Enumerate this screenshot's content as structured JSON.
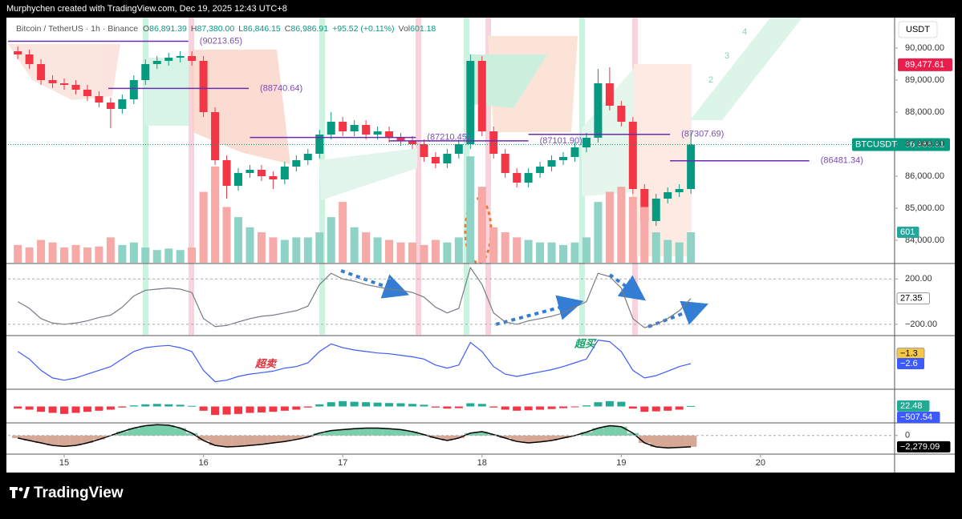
{
  "header": {
    "credit": "Murphychen created with TradingView.com, Dec 19, 2025 12:43 UTC+8",
    "symbol": "Bitcoin / TetherUS · 1h · Binance",
    "ohlc": [
      {
        "k": "O",
        "v": "86,891.39"
      },
      {
        "k": "H",
        "v": "87,380.00"
      },
      {
        "k": "L",
        "v": "86,846.15"
      },
      {
        "k": "C",
        "v": "86,986.91"
      }
    ],
    "change": "+95.52 (+0.11%)",
    "vol_label": "Vol",
    "vol": "601.18"
  },
  "footer": {
    "brand": "TradingView"
  },
  "annotations": {
    "oversold": "超卖",
    "overbought": "超买",
    "waves": [
      "2",
      "3",
      "4"
    ]
  },
  "chart_data": [
    {
      "type": "candlestick",
      "currency": "USDT",
      "up_color": "#089981",
      "down_color": "#f23645",
      "x": [
        -8,
        -6,
        -4,
        -2,
        0,
        2,
        4,
        6,
        8,
        10,
        12,
        14,
        16,
        18,
        20,
        22,
        24,
        26,
        28,
        30,
        32,
        34,
        36,
        38,
        40,
        42,
        44,
        46,
        48,
        50,
        52,
        54,
        56,
        58,
        60,
        62,
        64,
        66,
        68,
        70,
        72,
        74,
        76,
        78,
        80,
        82,
        84,
        86,
        88,
        90,
        92,
        94,
        96,
        98,
        100,
        102,
        104,
        106,
        108
      ],
      "open": [
        89900,
        89800,
        89500,
        89000,
        88900,
        88850,
        88700,
        88500,
        88300,
        88100,
        88400,
        89000,
        89500,
        89600,
        89700,
        89750,
        89600,
        88000,
        86500,
        85700,
        86100,
        86200,
        86000,
        85900,
        86300,
        86500,
        86700,
        87300,
        87700,
        87400,
        87600,
        87300,
        87400,
        87200,
        87100,
        87000,
        86600,
        86400,
        86700,
        87000,
        89600,
        87400,
        86700,
        86100,
        85800,
        86100,
        86300,
        86500,
        86600,
        86900,
        87200,
        88900,
        88200,
        87700,
        85600,
        84600,
        85300,
        85500,
        85600
      ],
      "high": [
        90050,
        89950,
        89650,
        89150,
        89050,
        89000,
        88850,
        88650,
        88450,
        88550,
        89150,
        89650,
        89750,
        89850,
        89900,
        89900,
        89750,
        88150,
        86650,
        86250,
        86350,
        86350,
        86150,
        86450,
        86650,
        86850,
        87450,
        88000,
        87850,
        87750,
        87750,
        87550,
        87550,
        87350,
        87250,
        87150,
        86750,
        86850,
        87150,
        89800,
        89750,
        87550,
        86850,
        86250,
        86250,
        86450,
        86650,
        86750,
        87050,
        87350,
        89350,
        89400,
        88350,
        87850,
        85750,
        85450,
        85650,
        85750,
        87380
      ],
      "low": [
        89650,
        89350,
        88850,
        88750,
        88700,
        88550,
        88350,
        88150,
        87500,
        87950,
        88250,
        88850,
        89350,
        89450,
        89550,
        89450,
        87850,
        86350,
        85300,
        85550,
        85950,
        85850,
        85600,
        85750,
        86150,
        86350,
        86550,
        87150,
        87250,
        87250,
        87150,
        87150,
        87050,
        86950,
        86850,
        86450,
        86250,
        86250,
        86550,
        86850,
        87250,
        86550,
        85950,
        85650,
        85650,
        85950,
        86150,
        86350,
        86450,
        86750,
        87050,
        88050,
        87550,
        85450,
        84450,
        84450,
        85150,
        85350,
        85450
      ],
      "close": [
        89800,
        89500,
        89000,
        88900,
        88850,
        88700,
        88500,
        88300,
        88100,
        88400,
        89000,
        89500,
        89600,
        89700,
        89750,
        89600,
        88000,
        86500,
        85700,
        86100,
        86200,
        86000,
        85900,
        86300,
        86500,
        86700,
        87300,
        87700,
        87400,
        87600,
        87300,
        87400,
        87200,
        87100,
        87000,
        86600,
        86400,
        86700,
        87000,
        89600,
        87400,
        86700,
        86100,
        85800,
        86100,
        86300,
        86500,
        86600,
        86900,
        87200,
        88900,
        88200,
        87700,
        85600,
        84600,
        85300,
        85500,
        85600,
        86986.91
      ],
      "xlim": [
        -9.68,
        143.1
      ],
      "xticks": [
        {
          "value": 0,
          "label": "15"
        },
        {
          "value": 24,
          "label": "16"
        },
        {
          "value": 48,
          "label": "17"
        },
        {
          "value": 72,
          "label": "18"
        },
        {
          "value": 96,
          "label": "19"
        },
        {
          "value": 120,
          "label": "20"
        }
      ],
      "ylim": [
        83300,
        90950
      ],
      "yticks": [
        {
          "value": 84000,
          "label": "84,000.00"
        },
        {
          "value": 85000,
          "label": "85,000.00"
        },
        {
          "value": 86000,
          "label": "86,000.00"
        },
        {
          "value": 87000,
          "label": "87,000.00"
        },
        {
          "value": 88000,
          "label": "88,000.00"
        },
        {
          "value": 89000,
          "label": "89,000.00"
        },
        {
          "value": 90000,
          "label": "90,000.00"
        }
      ],
      "levels": [
        {
          "value": 90213.65,
          "label": "(90213.65)",
          "from": -9.7,
          "to": 21.4
        },
        {
          "value": 88740.64,
          "label": "(88740.64)",
          "from": 7.6,
          "to": 31.8
        },
        {
          "value": 87210.45,
          "label": "(87210.45)",
          "from": 32,
          "to": 60.6
        },
        {
          "value": 87101.9,
          "label": "(87101.90)",
          "from": 56,
          "to": 80
        },
        {
          "value": 87307.69,
          "label": "(87307.69)",
          "from": 80,
          "to": 104.4
        },
        {
          "value": 86481.34,
          "label": "(86481.34)",
          "from": 104.4,
          "to": 128.4
        }
      ],
      "last_price": {
        "name": "BTCUSDT",
        "value": 86986.91,
        "label": "86,986.91"
      },
      "price_marker": {
        "value": 89477.61,
        "label": "89,477.61"
      }
    },
    {
      "type": "bar",
      "up_color": "#8fd3c6",
      "down_color": "#f7a9a7",
      "values": [
        350,
        300,
        450,
        400,
        300,
        350,
        300,
        320,
        500,
        350,
        400,
        300,
        250,
        280,
        250,
        300,
        1400,
        1900,
        1100,
        900,
        700,
        600,
        500,
        450,
        500,
        500,
        600,
        900,
        1200,
        700,
        600,
        500,
        450,
        400,
        400,
        350,
        450,
        400,
        500,
        2100,
        1500,
        700,
        600,
        500,
        450,
        400,
        400,
        350,
        400,
        500,
        1200,
        1400,
        1500,
        1300,
        1100,
        600,
        450,
        400,
        601.18
      ],
      "ylim": [
        0,
        4840
      ],
      "badges": [
        {
          "value": 601.18,
          "label": "601",
          "color": "#26a69a"
        }
      ]
    },
    {
      "type": "line",
      "color": "#787b86",
      "values": [
        0,
        -60,
        -150,
        -190,
        -200,
        -190,
        -170,
        -140,
        -120,
        -50,
        50,
        100,
        110,
        120,
        110,
        80,
        -150,
        -220,
        -210,
        -180,
        -150,
        -130,
        -120,
        -100,
        -80,
        -40,
        150,
        250,
        200,
        180,
        150,
        130,
        110,
        100,
        80,
        40,
        -50,
        -100,
        -60,
        300,
        150,
        -100,
        -180,
        -200,
        -170,
        -150,
        -130,
        -100,
        -50,
        0,
        250,
        220,
        120,
        -150,
        -230,
        -200,
        -150,
        -80,
        27.35
      ],
      "ylim": [
        -300,
        329
      ],
      "yticks": [
        {
          "value": 200,
          "label": "200.00"
        },
        {
          "value": -200,
          "label": "−200.00"
        }
      ],
      "badges": [
        {
          "value": 27.35,
          "label": "27.35",
          "color": "#ffffff"
        }
      ]
    },
    {
      "type": "line",
      "color": "#3d5afe",
      "values": [
        -1,
        -2,
        -3.5,
        -4.5,
        -4.8,
        -4.5,
        -4,
        -3.5,
        -3,
        -2,
        -1,
        -0.5,
        -0.3,
        -0.2,
        -0.5,
        -1,
        -3.5,
        -5,
        -4.8,
        -4.3,
        -4,
        -3.8,
        -3.6,
        -3.2,
        -3,
        -2.5,
        -1,
        0,
        -0.5,
        -0.8,
        -1,
        -1.2,
        -1.3,
        -1.5,
        -1.7,
        -2,
        -2.8,
        -3.2,
        -2.8,
        0.2,
        -1,
        -3,
        -4,
        -4.3,
        -4,
        -3.7,
        -3.4,
        -3,
        -2.5,
        -2,
        0.5,
        0.3,
        -1,
        -3.5,
        -4.5,
        -4.2,
        -3.6,
        -3,
        -2.6
      ],
      "ylim": [
        -6,
        1
      ],
      "badges": [
        {
          "value": -1.3,
          "label": "−1.3",
          "color": "#f7c843"
        },
        {
          "value": -2.6,
          "label": "−2.6",
          "color": "#3d5afe"
        }
      ]
    },
    {
      "type": "histogram",
      "up_color": "#22ab94",
      "down_color": "#f23645",
      "values": [
        -100,
        -150,
        -250,
        -300,
        -350,
        -300,
        -250,
        -200,
        -150,
        -50,
        50,
        100,
        120,
        100,
        80,
        30,
        -200,
        -400,
        -380,
        -350,
        -300,
        -280,
        -250,
        -200,
        -150,
        -50,
        100,
        200,
        250,
        220,
        200,
        180,
        160,
        150,
        120,
        80,
        -50,
        -100,
        -80,
        150,
        120,
        -50,
        -150,
        -200,
        -180,
        -150,
        -120,
        -80,
        -30,
        50,
        200,
        250,
        220,
        -100,
        -250,
        -230,
        -200,
        -150,
        22.48
      ],
      "ylim": [
        -770,
        770
      ],
      "badges": [
        {
          "value": 22.48,
          "label": "22.48",
          "color": "#22ab94"
        },
        {
          "value": -507.54,
          "label": "−507.54",
          "color": "#3d5afe"
        }
      ]
    },
    {
      "type": "area",
      "color": "#000000",
      "up_color": "#4cbf8f",
      "down_color": "#c98a72",
      "values": [
        -500,
        -1000,
        -1500,
        -2000,
        -2200,
        -2000,
        -1500,
        -800,
        0,
        800,
        1500,
        2000,
        2200,
        2100,
        1500,
        500,
        -1000,
        -2000,
        -2300,
        -2200,
        -2000,
        -1800,
        -1500,
        -1200,
        -800,
        -300,
        500,
        1000,
        1200,
        1400,
        1500,
        1500,
        1400,
        1200,
        800,
        200,
        -500,
        -1000,
        -500,
        500,
        800,
        200,
        -500,
        -1200,
        -1500,
        -1300,
        -1000,
        -500,
        0,
        700,
        1500,
        2000,
        1800,
        500,
        -1500,
        -2300,
        -2500,
        -2400,
        -2279.09
      ],
      "ylim": [
        -3600,
        2400
      ],
      "yticks": [
        0
      ],
      "badges": [
        {
          "value": -2279.09,
          "label": "−2,279.09",
          "color": "#000000"
        }
      ]
    }
  ]
}
